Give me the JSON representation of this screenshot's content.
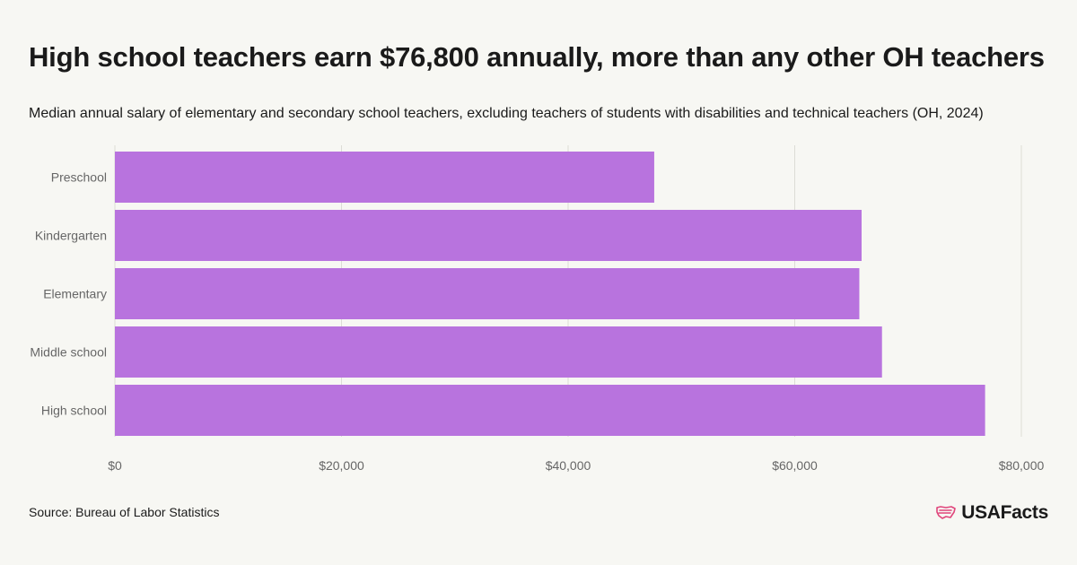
{
  "title": "High school teachers earn $76,800 annually, more than any other OH teachers",
  "subtitle": "Median annual salary of elementary and secondary school teachers, excluding teachers of students with disabilities and technical teachers (OH, 2024)",
  "source": "Source: Bureau of Labor Statistics",
  "brand": "USAFacts",
  "colors": {
    "bar": "#b873de",
    "grid": "#dcdcd6",
    "background": "#f7f7f3",
    "logo_icon": "#e0457b"
  },
  "chart_data": {
    "type": "bar",
    "orientation": "horizontal",
    "categories": [
      "Preschool",
      "Kindergarten",
      "Elementary",
      "Middle school",
      "High school"
    ],
    "values": [
      47600,
      65900,
      65700,
      67700,
      76800
    ],
    "xlim": [
      0,
      80000
    ],
    "xticks": [
      0,
      20000,
      40000,
      60000,
      80000
    ],
    "xtick_labels": [
      "$0",
      "$20,000",
      "$40,000",
      "$60,000",
      "$80,000"
    ],
    "xlabel": "",
    "ylabel": "",
    "grid": true
  }
}
